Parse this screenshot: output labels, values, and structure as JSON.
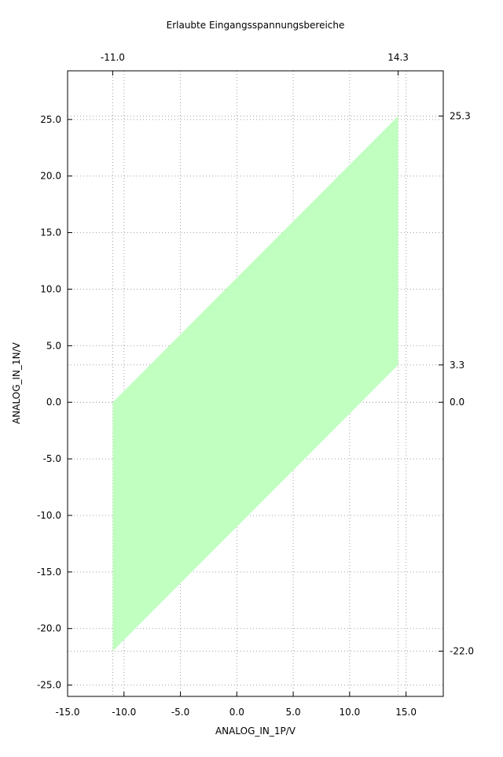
{
  "chart_data": {
    "type": "area",
    "title": "Erlaubte Eingangsspannungsbereiche",
    "xlabel": "ANALOG_IN_1P/V",
    "ylabel": "ANALOG_IN_1N/V",
    "xlim": [
      -15.0,
      18.3
    ],
    "ylim": [
      -26.0,
      29.3
    ],
    "x_ticks": [
      -15.0,
      -10.0,
      -5.0,
      0.0,
      5.0,
      10.0,
      15.0
    ],
    "x_tick_labels": [
      "-15.0",
      "-10.0",
      "-5.0",
      "0.0",
      "5.0",
      "10.0",
      "15.0"
    ],
    "y_ticks": [
      -25.0,
      -20.0,
      -15.0,
      -10.0,
      -5.0,
      0.0,
      5.0,
      10.0,
      15.0,
      20.0,
      25.0
    ],
    "y_tick_labels": [
      "-25.0",
      "-20.0",
      "-15.0",
      "-10.0",
      "-5.0",
      "0.0",
      "5.0",
      "10.0",
      "15.0",
      "20.0",
      "25.0"
    ],
    "x2_ticks": [
      -11.0,
      14.3
    ],
    "x2_tick_labels": [
      "-11.0",
      "14.3"
    ],
    "y2_ticks": [
      25.3,
      3.3,
      0.0,
      -22.0
    ],
    "y2_tick_labels": [
      "25.3",
      "3.3",
      "0.0",
      "-22.0"
    ],
    "grid": true,
    "region": {
      "x": [
        -11.0,
        -11.0,
        14.3,
        14.3
      ],
      "y": [
        0.0,
        -22.0,
        3.3,
        25.3
      ],
      "color": "#c0ffc0"
    }
  }
}
